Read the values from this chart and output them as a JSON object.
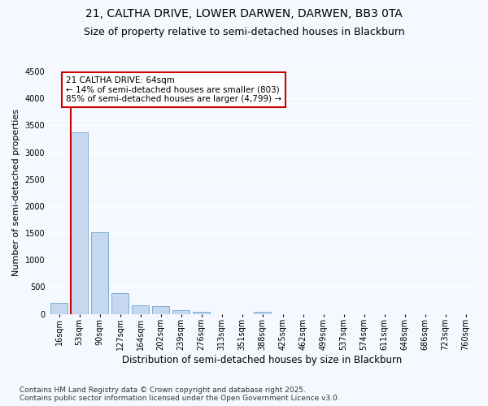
{
  "title1": "21, CALTHA DRIVE, LOWER DARWEN, DARWEN, BB3 0TA",
  "title2": "Size of property relative to semi-detached houses in Blackburn",
  "xlabel": "Distribution of semi-detached houses by size in Blackburn",
  "ylabel": "Number of semi-detached properties",
  "footer": "Contains HM Land Registry data © Crown copyright and database right 2025.\nContains public sector information licensed under the Open Government Licence v3.0.",
  "bin_labels": [
    "16sqm",
    "53sqm",
    "90sqm",
    "127sqm",
    "164sqm",
    "202sqm",
    "239sqm",
    "276sqm",
    "313sqm",
    "351sqm",
    "388sqm",
    "425sqm",
    "462sqm",
    "499sqm",
    "537sqm",
    "574sqm",
    "611sqm",
    "648sqm",
    "686sqm",
    "723sqm",
    "760sqm"
  ],
  "bar_values": [
    200,
    3370,
    1510,
    390,
    160,
    150,
    70,
    40,
    0,
    0,
    40,
    0,
    0,
    0,
    0,
    0,
    0,
    0,
    0,
    0,
    0
  ],
  "bar_color": "#c5d8f0",
  "bar_edge_color": "#7aafd4",
  "marker_label": "21 CALTHA DRIVE: 64sqm",
  "annotation_line1": "← 14% of semi-detached houses are smaller (803)",
  "annotation_line2": "85% of semi-detached houses are larger (4,799) →",
  "annotation_box_facecolor": "#ffffff",
  "annotation_box_edgecolor": "#cc0000",
  "vline_color": "#cc0000",
  "vline_x_index": 1,
  "ylim": [
    0,
    4500
  ],
  "yticks": [
    0,
    500,
    1000,
    1500,
    2000,
    2500,
    3000,
    3500,
    4000,
    4500
  ],
  "bg_color": "#f5f8ff",
  "plot_bg_color": "#f5f8ff",
  "grid_color": "#ffffff",
  "title1_fontsize": 10,
  "title2_fontsize": 9,
  "xlabel_fontsize": 8.5,
  "ylabel_fontsize": 8,
  "tick_fontsize": 7,
  "annot_fontsize": 7.5,
  "footer_fontsize": 6.5
}
